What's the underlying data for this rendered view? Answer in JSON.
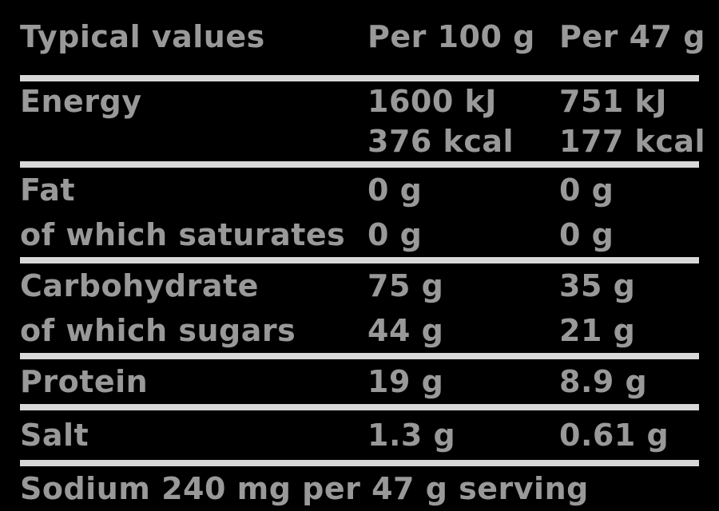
{
  "table": {
    "header": {
      "col1": "Typical values",
      "col2": "Per 100 g",
      "col3": "Per 47 g"
    },
    "energy": {
      "label": "Energy",
      "per100_kj": "1600 kJ",
      "per47_kj": "751 kJ",
      "per100_kcal": "376 kcal",
      "per47_kcal": "177 kcal"
    },
    "rows": [
      {
        "label": "Fat",
        "per100": "0 g",
        "per47": "0 g"
      },
      {
        "label": "of which saturates",
        "per100": "0 g",
        "per47": "0 g"
      },
      {
        "label": "Carbohydrate",
        "per100": "75 g",
        "per47": "35 g"
      },
      {
        "label": "of which sugars",
        "per100": "44 g",
        "per47": "21 g"
      },
      {
        "label": "Protein",
        "per100": "19 g",
        "per47": "8.9 g"
      },
      {
        "label": "Salt",
        "per100": "1.3 g",
        "per47": "0.61 g"
      }
    ],
    "footnote": "Sodium 240 mg per 47 g serving"
  },
  "colors": {
    "background": "#000000",
    "text": "#999999",
    "divider": "#d8d8d8"
  }
}
